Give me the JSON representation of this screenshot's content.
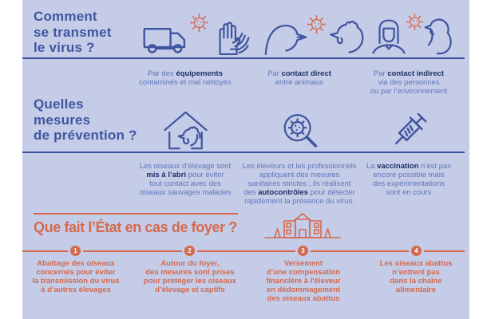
{
  "colors": {
    "background": "#c4cce7",
    "navy": "#3f549e",
    "navy_dark": "#1d2f66",
    "blue_text": "#6076ba",
    "coral": "#d5694e",
    "white": "#ffffff"
  },
  "transmission": {
    "title": "Comment\nse transmet\nle virus ?",
    "columns": [
      {
        "caption": "Par des **équipements**\ncontaminés et mal nettoyés",
        "icons": [
          "truck-icon",
          "virus-icon",
          "gloves-icon"
        ]
      },
      {
        "caption": "Par **contact direct**\nentre animaux",
        "icons": [
          "duck-icon",
          "virus-icon",
          "chicken-icon"
        ]
      },
      {
        "caption": "Par **contact indirect**\nvia des personnes\nou par l’environnement",
        "icons": [
          "person-icon",
          "virus-icon",
          "turkey-icon"
        ]
      }
    ]
  },
  "prevention": {
    "title": "Quelles\nmesures\nde prévention ?",
    "columns": [
      {
        "text": "Les oiseaux d’élevage sont\n**mis à l’abri** pour éviter\ntout contact avec des\noiseaux sauvages malades",
        "icon": "shelter-house-icon"
      },
      {
        "text": "Les éleveurs et les professionnels\nappliquent des mesures\nsanitaires strictes ; ils réalisent\ndes **autocontrôles** pour détecter\nrapidement la présence du virus.",
        "icon": "magnifier-virus-icon"
      },
      {
        "text": "La **vaccination** n’est pas\nencore possible mais\ndes expérimentations\nsont en cours",
        "icon": "syringe-icon"
      }
    ]
  },
  "etat": {
    "title": "Que fait l’État en cas de foyer ?",
    "icon": "government-building-icon",
    "steps": [
      {
        "num": "1",
        "text": "Abattage des oiseaux\nconcernés pour éviter\nla transmission du virus\nà d’autres élevages"
      },
      {
        "num": "2",
        "text": "Autour du foyer,\ndes mesures sont prises\npour protéger les oiseaux\nd’élevage et captifs"
      },
      {
        "num": "3",
        "text": "Versement\nd’une compensation\nfinancière à l'éleveur\nen dédommagement\ndes oiseaux abattus"
      },
      {
        "num": "4",
        "text": "Les oiseaux abattus\nn’entrent pas\ndans la chaîne\nalimentaire"
      }
    ]
  }
}
